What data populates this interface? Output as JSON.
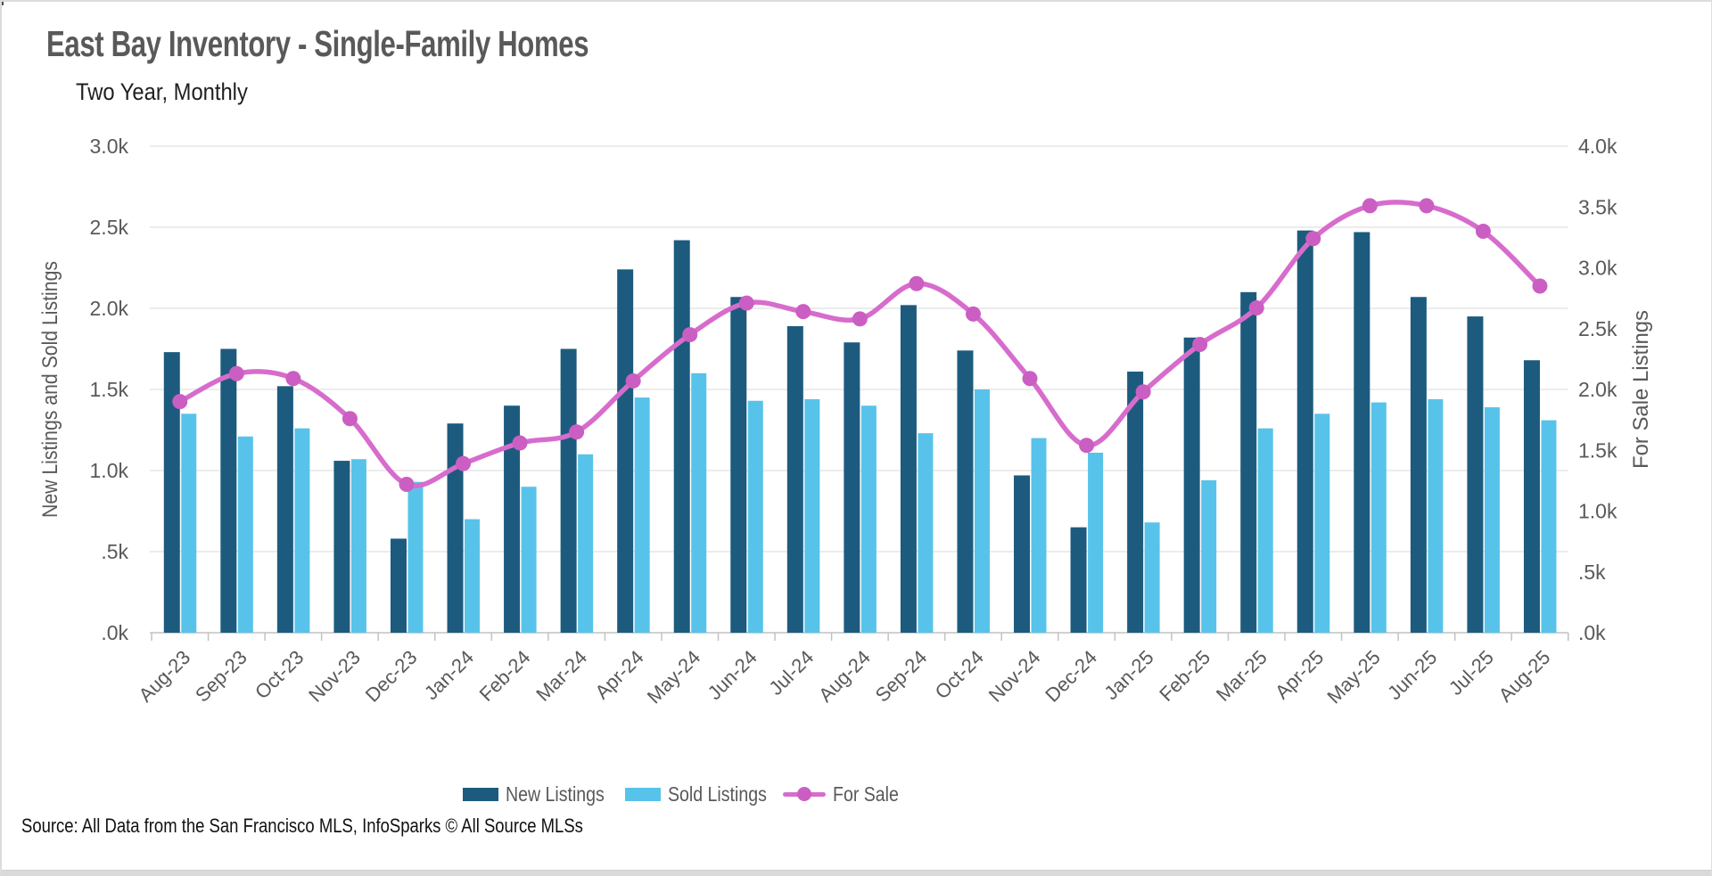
{
  "page": {
    "title": "East Bay Inventory - Single-Family Homes",
    "subtitle": "Two Year, Monthly",
    "source": "Source: All Data from the San Francisco MLS, InfoSparks © All Source MLSs"
  },
  "colors": {
    "new_listings": "#1d5b7e",
    "sold_listings": "#58c3ea",
    "for_sale_line": "#d76ccd",
    "for_sale_dot": "#cb5ec2",
    "gridline": "#d9d9d9",
    "axis_line": "#c2c2c2",
    "axis_text": "#595959",
    "title_text": "#595959"
  },
  "legend": {
    "items": [
      {
        "label": "New Listings",
        "marker": "swatch",
        "color": "#1d5b7e"
      },
      {
        "label": "Sold Listings",
        "marker": "swatch",
        "color": "#58c3ea"
      },
      {
        "label": "For Sale",
        "marker": "line",
        "color": "#d76ccd",
        "dot_color": "#cb5ec2"
      }
    ]
  },
  "chart_data": {
    "type": "bar+line combo",
    "title": "East Bay Inventory - Single-Family Homes",
    "subtitle": "Two Year, Monthly",
    "grid": "horizontal only",
    "legend_position": "bottom",
    "categories": [
      "Aug-23",
      "Sep-23",
      "Oct-23",
      "Nov-23",
      "Dec-23",
      "Jan-24",
      "Feb-24",
      "Mar-24",
      "Apr-24",
      "May-24",
      "Jun-24",
      "Jul-24",
      "Aug-24",
      "Sep-24",
      "Oct-24",
      "Nov-24",
      "Dec-24",
      "Jan-25",
      "Feb-25",
      "Mar-25",
      "Apr-25",
      "May-25",
      "Jun-25",
      "Jul-25",
      "Aug-25"
    ],
    "series": [
      {
        "name": "New Listings",
        "type": "bar",
        "axis": "left",
        "color": "#1d5b7e",
        "values": [
          1730,
          1750,
          1520,
          1060,
          580,
          1290,
          1400,
          1750,
          2240,
          2420,
          2070,
          1890,
          1790,
          2020,
          1740,
          970,
          650,
          1610,
          1820,
          2100,
          2480,
          2470,
          2070,
          1950,
          1680
        ]
      },
      {
        "name": "Sold Listings",
        "type": "bar",
        "axis": "left",
        "color": "#58c3ea",
        "values": [
          1350,
          1210,
          1260,
          1070,
          930,
          700,
          900,
          1100,
          1450,
          1600,
          1430,
          1440,
          1400,
          1230,
          1500,
          1200,
          1110,
          680,
          940,
          1260,
          1350,
          1420,
          1440,
          1390,
          1310
        ]
      },
      {
        "name": "For Sale",
        "type": "line",
        "axis": "right",
        "color": "#d76ccd",
        "dot_color": "#cb5ec2",
        "values": [
          1900,
          2130,
          2090,
          1760,
          1220,
          1390,
          1560,
          1650,
          2070,
          2450,
          2710,
          2640,
          2580,
          2870,
          2620,
          2090,
          1540,
          1980,
          2370,
          2670,
          3240,
          3510,
          3510,
          3300,
          2850
        ]
      }
    ],
    "left_axis": {
      "label": "New Listings and Sold Listings",
      "range": [
        0,
        3000
      ],
      "ticks": [
        "3.0k",
        "2.5k",
        "2.0k",
        "1.5k",
        "1.0k",
        ".5k",
        ".0k"
      ]
    },
    "right_axis": {
      "label": "For Sale Listings",
      "range": [
        0,
        4000
      ],
      "ticks": [
        "4.0k",
        "3.5k",
        "3.0k",
        "2.5k",
        "2.0k",
        "1.5k",
        "1.0k",
        ".5k",
        ".0k"
      ]
    }
  }
}
